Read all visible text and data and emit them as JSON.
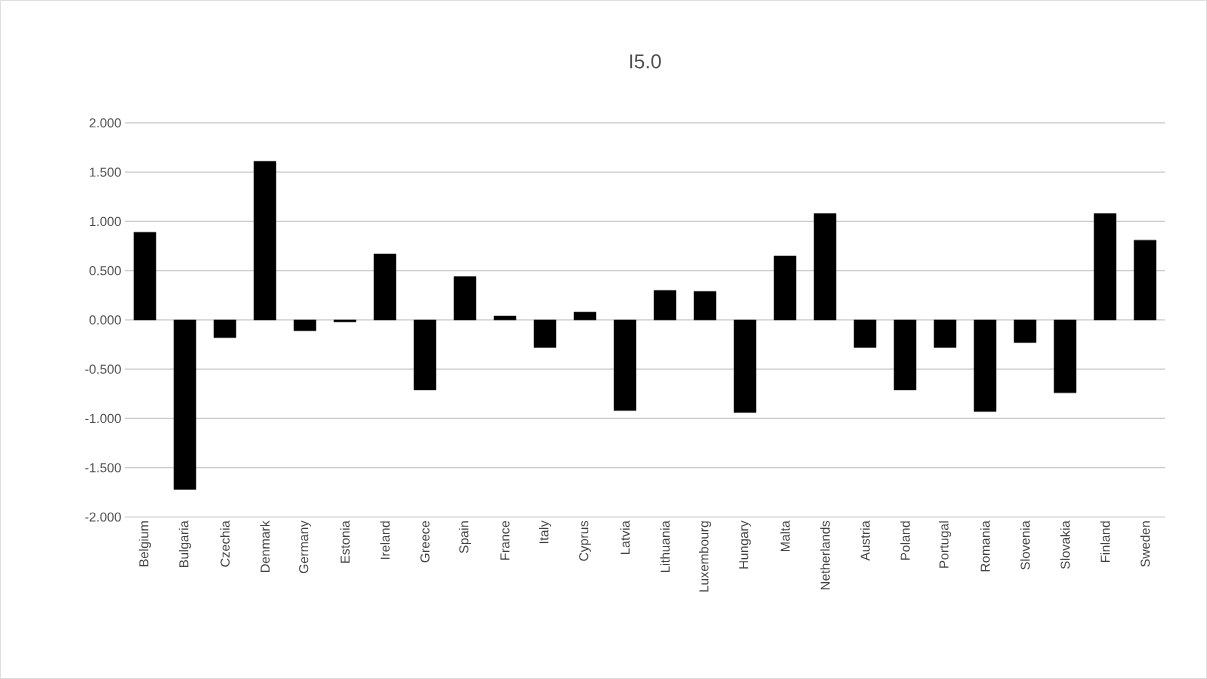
{
  "chart_data": {
    "type": "bar",
    "title": "I5.0",
    "categories": [
      "Belgium",
      "Bulgaria",
      "Czechia",
      "Denmark",
      "Germany",
      "Estonia",
      "Ireland",
      "Greece",
      "Spain",
      "France",
      "Italy",
      "Cyprus",
      "Latvia",
      "Lithuania",
      "Luxembourg",
      "Hungary",
      "Malta",
      "Netherlands",
      "Austria",
      "Poland",
      "Portugal",
      "Romania",
      "Slovenia",
      "Slovakia",
      "Finland",
      "Sweden"
    ],
    "values": [
      0.89,
      -1.72,
      -0.18,
      1.61,
      -0.11,
      -0.02,
      0.67,
      -0.71,
      0.44,
      0.04,
      -0.28,
      0.08,
      -0.92,
      0.3,
      0.29,
      -0.94,
      0.65,
      1.08,
      -0.28,
      -0.71,
      -0.28,
      -0.93,
      -0.23,
      -0.74,
      1.08,
      0.81
    ],
    "color": "#000000",
    "ylim": [
      -2,
      2
    ],
    "yticks": [
      {
        "value": -2,
        "label": "-2.000"
      },
      {
        "value": -1.5,
        "label": "-1.500"
      },
      {
        "value": -1,
        "label": "-1.000"
      },
      {
        "value": -0.5,
        "label": "-0.500"
      },
      {
        "value": 0,
        "label": "0.000"
      },
      {
        "value": 0.5,
        "label": "0.500"
      },
      {
        "value": 1,
        "label": "1.000"
      },
      {
        "value": 1.5,
        "label": "1.500"
      },
      {
        "value": 2,
        "label": "2.000"
      }
    ],
    "grid": "y"
  }
}
